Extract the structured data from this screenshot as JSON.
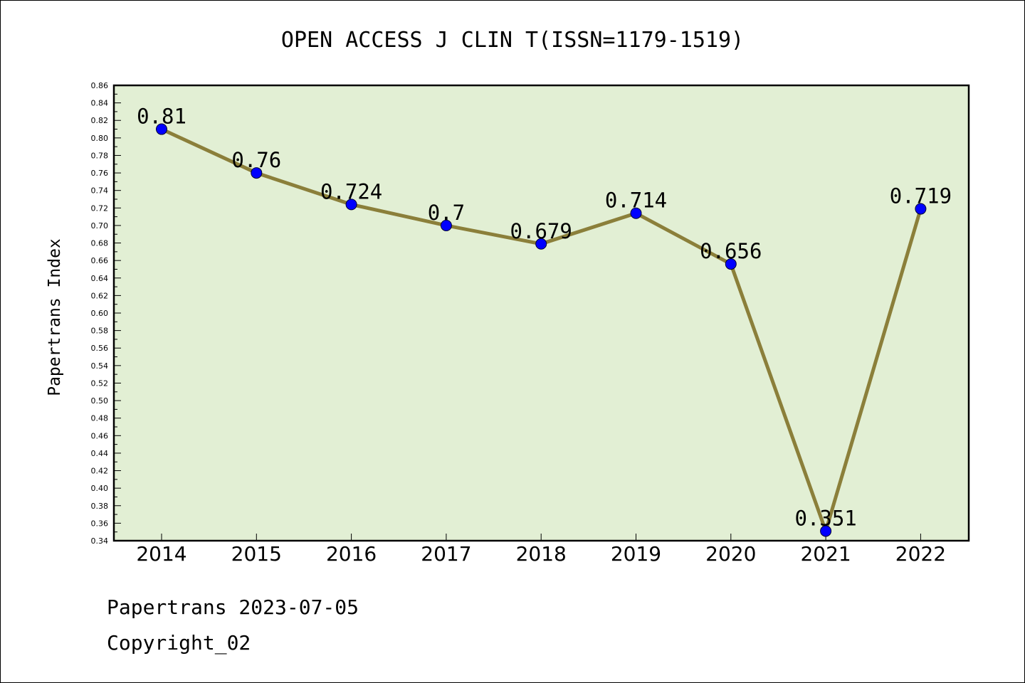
{
  "chart_data": {
    "type": "line",
    "title": "OPEN ACCESS J CLIN T(ISSN=1179-1519)",
    "ylabel": "Papertrans Index",
    "xlabel": "",
    "categories": [
      "2014",
      "2015",
      "2016",
      "2017",
      "2018",
      "2019",
      "2020",
      "2021",
      "2022"
    ],
    "values": [
      0.81,
      0.76,
      0.724,
      0.7,
      0.679,
      0.714,
      0.656,
      0.351,
      0.719
    ],
    "data_labels": [
      "0.81",
      "0.76",
      "0.724",
      "0.7",
      "0.679",
      "0.714",
      "0.656",
      "0.351",
      "0.719"
    ],
    "ylim": [
      0.34,
      0.86
    ],
    "ytick_step": 0.02,
    "grid": false,
    "plot_background": "#e2efd4",
    "line_color": "#8b7f3a",
    "marker_color": "#0000ff"
  },
  "footer": {
    "line1": "Papertrans 2023-07-05",
    "line2": "Copyright_02"
  }
}
